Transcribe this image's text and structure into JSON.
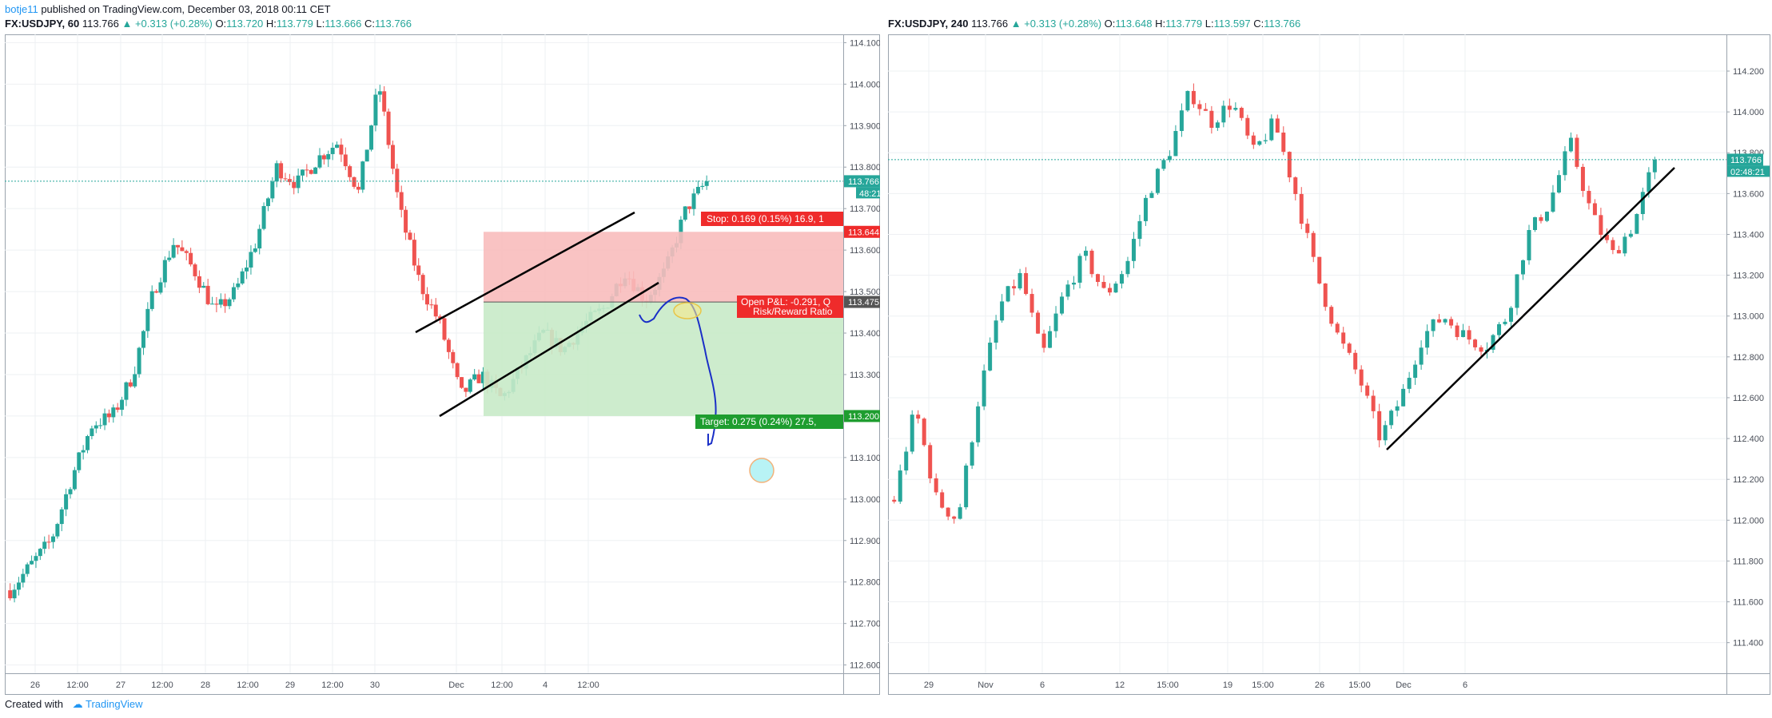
{
  "header": {
    "user": "botje11",
    "published": "published on TradingView.com, December 03, 2018 00:11 CET"
  },
  "left": {
    "symbol": "FX:USDJPY, 60",
    "last": "113.766",
    "change": "▲ +0.313 (+0.28%)",
    "o_label": "O:",
    "o": "113.720",
    "h_label": "H:",
    "h": "113.779",
    "l_label": "L:",
    "l": "113.666",
    "c_label": "C:",
    "c": "113.766",
    "price_tag": "113.766",
    "countdown": "48:21",
    "stop_tag": "113.644",
    "entry_tag": "113.475",
    "target_tag": "113.200",
    "stop_label": "Stop: 0.169 (0.15%) 16.9, 1",
    "pnl_label_1": "Open P&L: -0.291, Q",
    "pnl_label_2": "Risk/Reward Ratio"
  },
  "right": {
    "symbol": "FX:USDJPY, 240",
    "last": "113.766",
    "change": "▲ +0.313 (+0.28%)",
    "o_label": "O:",
    "o": "113.648",
    "h_label": "H:",
    "h": "113.779",
    "l_label": "L:",
    "l": "113.597",
    "c_label": "C:",
    "c": "113.766",
    "price_tag": "113.766",
    "countdown": "02:48:21"
  },
  "footer": {
    "created_with": "Created with",
    "brand": "TradingView"
  },
  "colors": {
    "up": "#26a69a",
    "down": "#ef5350",
    "stop_zone": "#f8bcbc",
    "target_zone": "#c8eac8",
    "accent": "#2196f3"
  },
  "chart_data": [
    {
      "type": "candlestick",
      "title": "FX:USDJPY, 60",
      "x_ticks": [
        "26",
        "12:00",
        "27",
        "12:00",
        "28",
        "12:00",
        "29",
        "12:00",
        "30",
        "Dec",
        "12:00",
        "4",
        "12:00"
      ],
      "y_ticks": [
        "112.600",
        "112.700",
        "112.800",
        "112.900",
        "113.000",
        "113.100",
        "113.200",
        "113.300",
        "113.400",
        "113.500",
        "113.600",
        "113.700",
        "113.800",
        "113.900",
        "114.000",
        "114.100"
      ],
      "ylim": [
        112.58,
        114.12
      ],
      "last_price": 113.766,
      "close_path": [
        112.78,
        112.84,
        112.9,
        113.05,
        113.18,
        113.2,
        113.3,
        113.5,
        113.62,
        113.55,
        113.45,
        113.5,
        113.62,
        113.8,
        113.76,
        113.82,
        113.86,
        113.74,
        114.0,
        113.7,
        113.52,
        113.42,
        113.25,
        113.3,
        113.24,
        113.32,
        113.4,
        113.36,
        113.42,
        113.46,
        113.55,
        113.48,
        113.55,
        113.7,
        113.766
      ],
      "position": {
        "entry": 113.475,
        "stop": 113.644,
        "target": 113.2
      },
      "grid": true
    },
    {
      "type": "candlestick",
      "title": "FX:USDJPY, 240",
      "x_ticks": [
        "29",
        "Nov",
        "6",
        "12",
        "15:00",
        "19",
        "15:00",
        "26",
        "15:00",
        "Dec",
        "6"
      ],
      "y_ticks": [
        "111.400",
        "111.600",
        "111.800",
        "112.000",
        "112.200",
        "112.400",
        "112.600",
        "112.800",
        "113.000",
        "113.200",
        "113.400",
        "113.600",
        "113.800",
        "114.000",
        "114.200"
      ],
      "ylim": [
        111.25,
        114.38
      ],
      "last_price": 113.766,
      "close_path": [
        112.1,
        112.55,
        112.1,
        112.0,
        112.6,
        113.05,
        113.2,
        112.8,
        113.1,
        113.3,
        113.1,
        113.25,
        113.6,
        113.8,
        114.1,
        113.95,
        114.05,
        113.8,
        113.95,
        113.6,
        113.2,
        112.9,
        112.7,
        112.4,
        112.6,
        112.9,
        113.0,
        112.9,
        112.85,
        113.0,
        113.4,
        113.55,
        113.85,
        113.5,
        113.3,
        113.45,
        113.766
      ],
      "grid": true
    }
  ]
}
